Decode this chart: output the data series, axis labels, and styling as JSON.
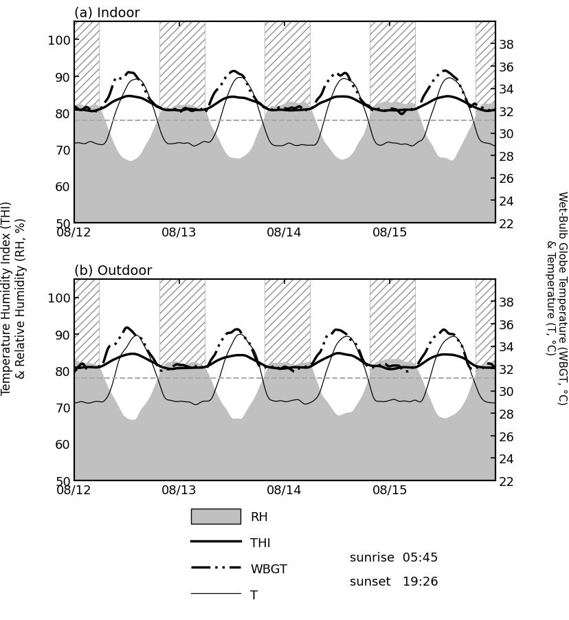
{
  "title_a": "(a) Indoor",
  "title_b": "(b) Outdoor",
  "ylabel_left_1": "Temperature Humidity Index (THI)",
  "ylabel_left_2": "& Relative Humidity (RH, %)",
  "ylabel_right_1": "Wet-Bulb Globe Temperature (WBGT, °C)",
  "ylabel_right_2": "& Temperature (T, °C)",
  "ylim_left": [
    50,
    105
  ],
  "yticks_left": [
    50,
    60,
    70,
    80,
    90,
    100
  ],
  "ylim_right": [
    22,
    40
  ],
  "yticks_right": [
    22,
    24,
    26,
    28,
    30,
    32,
    34,
    36,
    38
  ],
  "threshold": 78,
  "threshold_color": "#aaaaaa",
  "sunrise_hour": 5.75,
  "sunset_hour": 19.4333,
  "xtick_positions": [
    0,
    1,
    2,
    3
  ],
  "xtick_labels": [
    "08/12",
    "08/13",
    "08/14",
    "08/15"
  ],
  "legend_rh_label": "RH",
  "legend_thi_label": "THI",
  "legend_wbgt_label": "WBGT",
  "legend_t_label": "T",
  "legend_sunrise": "sunrise  05:45",
  "legend_sunset": "sunset   19:26",
  "rh_color": "#c0c0c0",
  "thi_lw": 2.5,
  "wbgt_lw": 2.5,
  "t_lw": 0.9,
  "hatch_color": "#909090",
  "hatch_pattern": "///",
  "background_color": "#ffffff",
  "figwidth_cm": 21.04,
  "figheight_cm": 22.93,
  "dpi": 100
}
